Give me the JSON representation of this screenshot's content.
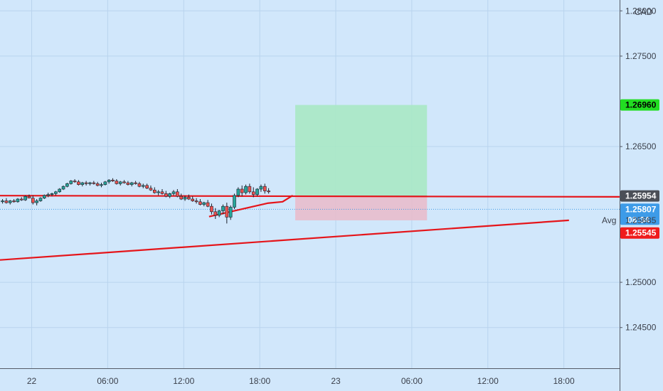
{
  "chart_data": {
    "type": "candlestick",
    "currency": "CAD",
    "y_ticks": [
      "1.28000",
      "1.27500",
      "1.26500",
      "1.25000",
      "1.24500"
    ],
    "y_tick_values": [
      1.28,
      1.275,
      1.265,
      1.25,
      1.245
    ],
    "ylim": [
      1.2405,
      1.2812
    ],
    "x_ticks": [
      "22",
      "06:00",
      "12:00",
      "18:00",
      "23",
      "06:00",
      "12:00",
      "18:00"
    ],
    "x_tick_hours": [
      0,
      6,
      12,
      18,
      24,
      30,
      36,
      42
    ],
    "xlim_hours": [
      -2.5,
      46.4
    ],
    "candles": [
      [
        -2.3,
        1.2589,
        1.2592,
        1.2587,
        1.259
      ],
      [
        -2.0,
        1.259,
        1.2593,
        1.2587,
        1.2588
      ],
      [
        -1.7,
        1.2588,
        1.2591,
        1.2586,
        1.259
      ],
      [
        -1.4,
        1.259,
        1.2592,
        1.2588,
        1.2589
      ],
      [
        -1.1,
        1.2589,
        1.2593,
        1.2588,
        1.2592
      ],
      [
        -0.8,
        1.2592,
        1.2594,
        1.259,
        1.2591
      ],
      [
        -0.5,
        1.2591,
        1.2596,
        1.259,
        1.2595
      ],
      [
        -0.2,
        1.2595,
        1.2597,
        1.2593,
        1.2593
      ],
      [
        0.1,
        1.2593,
        1.2596,
        1.2586,
        1.2588
      ],
      [
        0.4,
        1.2588,
        1.2592,
        1.2585,
        1.259
      ],
      [
        0.7,
        1.259,
        1.2594,
        1.2589,
        1.2593
      ],
      [
        1.0,
        1.2593,
        1.2597,
        1.2592,
        1.2596
      ],
      [
        1.3,
        1.2596,
        1.2599,
        1.2594,
        1.2597
      ],
      [
        1.6,
        1.2597,
        1.2599,
        1.2595,
        1.2598
      ],
      [
        1.9,
        1.2598,
        1.2601,
        1.2596,
        1.26
      ],
      [
        2.2,
        1.26,
        1.2604,
        1.2599,
        1.2603
      ],
      [
        2.5,
        1.2603,
        1.2607,
        1.2602,
        1.2606
      ],
      [
        2.8,
        1.2606,
        1.261,
        1.2605,
        1.2609
      ],
      [
        3.1,
        1.2609,
        1.2613,
        1.2608,
        1.2612
      ],
      [
        3.4,
        1.2612,
        1.2614,
        1.261,
        1.2611
      ],
      [
        3.7,
        1.2611,
        1.2613,
        1.2607,
        1.2608
      ],
      [
        4.0,
        1.2608,
        1.2611,
        1.2606,
        1.261
      ],
      [
        4.3,
        1.261,
        1.2612,
        1.2607,
        1.2609
      ],
      [
        4.6,
        1.2609,
        1.2611,
        1.2607,
        1.261
      ],
      [
        4.9,
        1.261,
        1.2612,
        1.2608,
        1.2609
      ],
      [
        5.2,
        1.2609,
        1.2611,
        1.2606,
        1.2607
      ],
      [
        5.5,
        1.2607,
        1.261,
        1.2605,
        1.2608
      ],
      [
        5.8,
        1.2608,
        1.2612,
        1.2607,
        1.2611
      ],
      [
        6.1,
        1.2611,
        1.2614,
        1.2609,
        1.2613
      ],
      [
        6.4,
        1.2613,
        1.2615,
        1.2611,
        1.2612
      ],
      [
        6.7,
        1.2612,
        1.2614,
        1.2608,
        1.2609
      ],
      [
        7.0,
        1.2609,
        1.2612,
        1.2607,
        1.2611
      ],
      [
        7.3,
        1.2611,
        1.2613,
        1.2609,
        1.261
      ],
      [
        7.6,
        1.261,
        1.2612,
        1.2607,
        1.2608
      ],
      [
        7.9,
        1.2608,
        1.2611,
        1.2606,
        1.261
      ],
      [
        8.2,
        1.261,
        1.2612,
        1.2608,
        1.2609
      ],
      [
        8.5,
        1.2609,
        1.2611,
        1.2605,
        1.2606
      ],
      [
        8.8,
        1.2606,
        1.2609,
        1.2604,
        1.2607
      ],
      [
        9.1,
        1.2607,
        1.2609,
        1.2603,
        1.2604
      ],
      [
        9.4,
        1.2604,
        1.2607,
        1.2601,
        1.2602
      ],
      [
        9.7,
        1.2602,
        1.2605,
        1.2598,
        1.2599
      ],
      [
        10.0,
        1.2599,
        1.2602,
        1.2596,
        1.26
      ],
      [
        10.3,
        1.26,
        1.2603,
        1.2597,
        1.2598
      ],
      [
        10.6,
        1.2598,
        1.2601,
        1.2594,
        1.2595
      ],
      [
        10.9,
        1.2595,
        1.2599,
        1.2593,
        1.2598
      ],
      [
        11.2,
        1.2598,
        1.2602,
        1.2596,
        1.26
      ],
      [
        11.5,
        1.26,
        1.2603,
        1.2594,
        1.2595
      ],
      [
        11.8,
        1.2595,
        1.2598,
        1.2591,
        1.2592
      ],
      [
        12.1,
        1.2592,
        1.2596,
        1.259,
        1.2594
      ],
      [
        12.4,
        1.2594,
        1.2597,
        1.2591,
        1.2592
      ],
      [
        12.7,
        1.2592,
        1.2595,
        1.2589,
        1.259
      ],
      [
        13.0,
        1.259,
        1.2593,
        1.2587,
        1.2589
      ],
      [
        13.3,
        1.2589,
        1.2592,
        1.2585,
        1.2586
      ],
      [
        13.6,
        1.2586,
        1.2589,
        1.2584,
        1.2588
      ],
      [
        13.9,
        1.2588,
        1.2591,
        1.2583,
        1.2584
      ],
      [
        14.2,
        1.2584,
        1.2587,
        1.2575,
        1.2578
      ],
      [
        14.5,
        1.2578,
        1.2582,
        1.257,
        1.2574
      ],
      [
        14.8,
        1.2574,
        1.258,
        1.2572,
        1.2579
      ],
      [
        15.1,
        1.2579,
        1.2586,
        1.2575,
        1.2584
      ],
      [
        15.4,
        1.2584,
        1.2588,
        1.2565,
        1.2572
      ],
      [
        15.7,
        1.2572,
        1.2585,
        1.2569,
        1.2583
      ],
      [
        16.0,
        1.2583,
        1.2598,
        1.2581,
        1.2596
      ],
      [
        16.3,
        1.2596,
        1.2605,
        1.2594,
        1.2603
      ],
      [
        16.6,
        1.2603,
        1.2607,
        1.2595,
        1.2599
      ],
      [
        16.9,
        1.2599,
        1.2608,
        1.2597,
        1.2606
      ],
      [
        17.2,
        1.2606,
        1.2609,
        1.2598,
        1.26
      ],
      [
        17.5,
        1.26,
        1.2605,
        1.2594,
        1.2597
      ],
      [
        17.8,
        1.2597,
        1.2604,
        1.2595,
        1.2603
      ],
      [
        18.1,
        1.2603,
        1.2608,
        1.26,
        1.2606
      ],
      [
        18.4,
        1.2606,
        1.2609,
        1.2598,
        1.2601
      ],
      [
        18.7,
        1.2601,
        1.2604,
        1.2598,
        1.26
      ]
    ],
    "trendlines": [
      {
        "points": [
          [
            -2.5,
            1.25958
          ],
          [
            46.4,
            1.25944
          ]
        ],
        "color": "#e5151a"
      },
      {
        "points": [
          [
            -2.5,
            1.25247
          ],
          [
            42.4,
            1.25685
          ]
        ],
        "color": "#e5151a"
      },
      {
        "points": [
          [
            14.0,
            1.25726
          ],
          [
            18.6,
            1.25874
          ],
          [
            19.8,
            1.2589
          ],
          [
            20.6,
            1.2596
          ]
        ],
        "color": "#e5151a"
      }
    ],
    "position": {
      "start_hour": 20.8,
      "end_hour": 31.2,
      "entry": 1.25954,
      "target": 1.2696,
      "stop": 1.25685,
      "profit_color": "#a8e8c4",
      "loss_color": "#e8bccc"
    },
    "last_price_line": 1.25807,
    "price_tags": [
      {
        "value": 1.2696,
        "text": "1.26960",
        "bg": "#22dd22",
        "fg": "#000000"
      },
      {
        "value": 1.25954,
        "text": "1.25954",
        "bg": "#4b4f57",
        "fg": "#ffffff"
      },
      {
        "value": 1.25807,
        "text": "1.25807",
        "sub": "08:34",
        "bg": "#3d9be8",
        "fg": "#ffffff"
      },
      {
        "value": 1.25545,
        "text": "1.25545",
        "bg": "#ef1c1c",
        "fg": "#ffffff"
      }
    ],
    "avg_label": {
      "value": 1.25685,
      "label": "Avg",
      "text": "1.25685"
    },
    "colors": {
      "up": "#26a69a",
      "down": "#ef5350",
      "wick": "#1b1f2a",
      "grid": "#b9d4ee",
      "background": "#d1e7fb"
    }
  }
}
